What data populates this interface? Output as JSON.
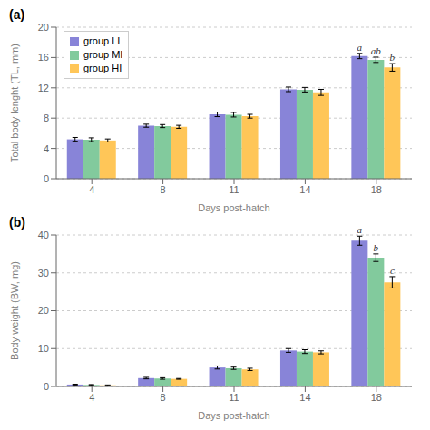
{
  "chart_data": [
    {
      "type": "bar",
      "title": "(a)",
      "x_label": "Days post-hatch",
      "y_label": "Total body lenght (TL, mm)",
      "categories": [
        "4",
        "8",
        "11",
        "14",
        "18"
      ],
      "series": [
        {
          "name": "group LI",
          "color": "#8884d8",
          "values": [
            5.2,
            7.0,
            8.5,
            11.8,
            16.2
          ],
          "errors": [
            0.25,
            0.2,
            0.3,
            0.3,
            0.35
          ]
        },
        {
          "name": "group MI",
          "color": "#82ca9d",
          "values": [
            5.15,
            6.95,
            8.45,
            11.75,
            15.7
          ],
          "errors": [
            0.25,
            0.2,
            0.3,
            0.3,
            0.35
          ]
        },
        {
          "name": "group HI",
          "color": "#ffc658",
          "values": [
            5.05,
            6.85,
            8.25,
            11.4,
            14.7
          ],
          "errors": [
            0.2,
            0.2,
            0.25,
            0.4,
            0.5
          ]
        }
      ],
      "annotations": [
        {
          "category": "18",
          "series": "group LI",
          "text": "a"
        },
        {
          "category": "18",
          "series": "group MI",
          "text": "ab"
        },
        {
          "category": "18",
          "series": "group HI",
          "text": "b"
        }
      ],
      "ylim": [
        0,
        20
      ],
      "yticks": [
        0,
        4,
        8,
        12,
        16,
        20
      ],
      "grid": true,
      "legend": "upper left"
    },
    {
      "type": "bar",
      "title": "(b)",
      "x_label": "Days post-hatch",
      "y_label": "Body weight (BW, mg)",
      "categories": [
        "4",
        "8",
        "11",
        "14",
        "18"
      ],
      "series": [
        {
          "name": "group LI",
          "color": "#8884d8",
          "values": [
            0.5,
            2.2,
            5.0,
            9.5,
            38.5
          ],
          "errors": [
            0.1,
            0.2,
            0.4,
            0.5,
            1.2
          ]
        },
        {
          "name": "group MI",
          "color": "#82ca9d",
          "values": [
            0.4,
            2.1,
            4.8,
            9.2,
            34.0
          ],
          "errors": [
            0.1,
            0.2,
            0.3,
            0.5,
            1.0
          ]
        },
        {
          "name": "group HI",
          "color": "#ffc658",
          "values": [
            0.3,
            2.0,
            4.5,
            9.0,
            27.5
          ],
          "errors": [
            0.1,
            0.1,
            0.3,
            0.4,
            1.5
          ]
        }
      ],
      "annotations": [
        {
          "category": "18",
          "series": "group LI",
          "text": "a"
        },
        {
          "category": "18",
          "series": "group MI",
          "text": "b"
        },
        {
          "category": "18",
          "series": "group HI",
          "text": "c"
        }
      ],
      "ylim": [
        0,
        40
      ],
      "yticks": [
        0,
        10,
        20,
        30,
        40
      ],
      "grid": true
    }
  ]
}
